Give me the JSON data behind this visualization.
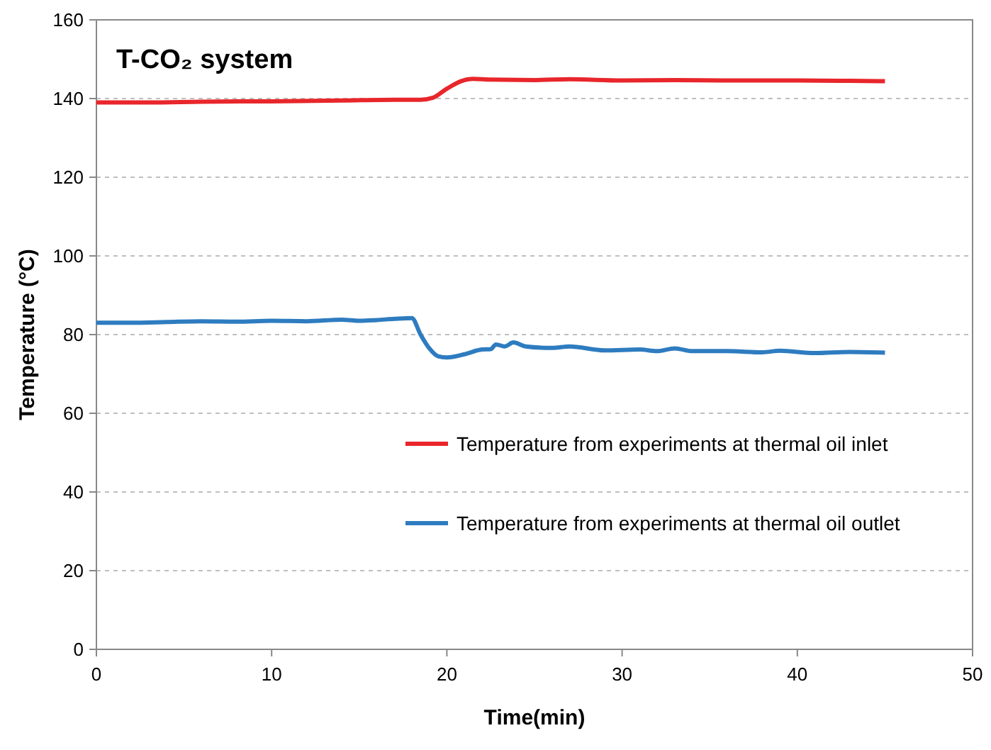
{
  "chart_data": {
    "type": "line",
    "title": "T-CO₂ system",
    "xlabel": "Time(min)",
    "ylabel": "Temperature (°C)",
    "xlim": [
      0,
      50
    ],
    "xticks": [
      0,
      10,
      20,
      30,
      40,
      50
    ],
    "ylim": [
      0,
      160
    ],
    "yticks": [
      0,
      20,
      40,
      60,
      80,
      100,
      120,
      140,
      160
    ],
    "grid": "y",
    "legend": "bottom right",
    "marker": "none",
    "line_style": "solid",
    "series": [
      {
        "name": "Temperature from experiments at thermal oil inlet",
        "color": "#e8262b",
        "x": [
          0,
          3,
          6,
          10,
          14,
          17,
          18.5,
          19.2,
          20,
          20.8,
          21.5,
          22.5,
          25,
          27,
          30,
          33,
          36,
          40,
          43,
          45
        ],
        "values": [
          139,
          139,
          139.2,
          139.3,
          139.5,
          139.7,
          139.7,
          140.2,
          142.5,
          144.4,
          145,
          144.8,
          144.7,
          144.9,
          144.6,
          144.7,
          144.6,
          144.6,
          144.5,
          144.4
        ]
      },
      {
        "name": "Temperature from experiments at thermal oil outlet",
        "color": "#2e7cc0",
        "x": [
          0,
          2,
          4,
          6,
          8,
          10,
          12,
          14,
          15,
          16,
          17,
          18,
          18.5,
          19,
          19.5,
          20,
          21,
          22,
          22.5,
          22.8,
          23.3,
          23.8,
          24.5,
          26,
          27,
          29,
          31,
          32,
          33,
          34,
          36,
          38,
          39,
          41,
          43,
          45
        ],
        "values": [
          83,
          83,
          83.2,
          83.4,
          83.3,
          83.5,
          83.4,
          83.8,
          83.5,
          83.7,
          84,
          84.2,
          80,
          76.5,
          74.5,
          74.2,
          75,
          76.2,
          76.3,
          77.5,
          77,
          78,
          77,
          76.6,
          77,
          76,
          76.2,
          75.8,
          76.5,
          75.8,
          75.8,
          75.5,
          75.9,
          75.3,
          75.6,
          75.4
        ]
      }
    ]
  }
}
